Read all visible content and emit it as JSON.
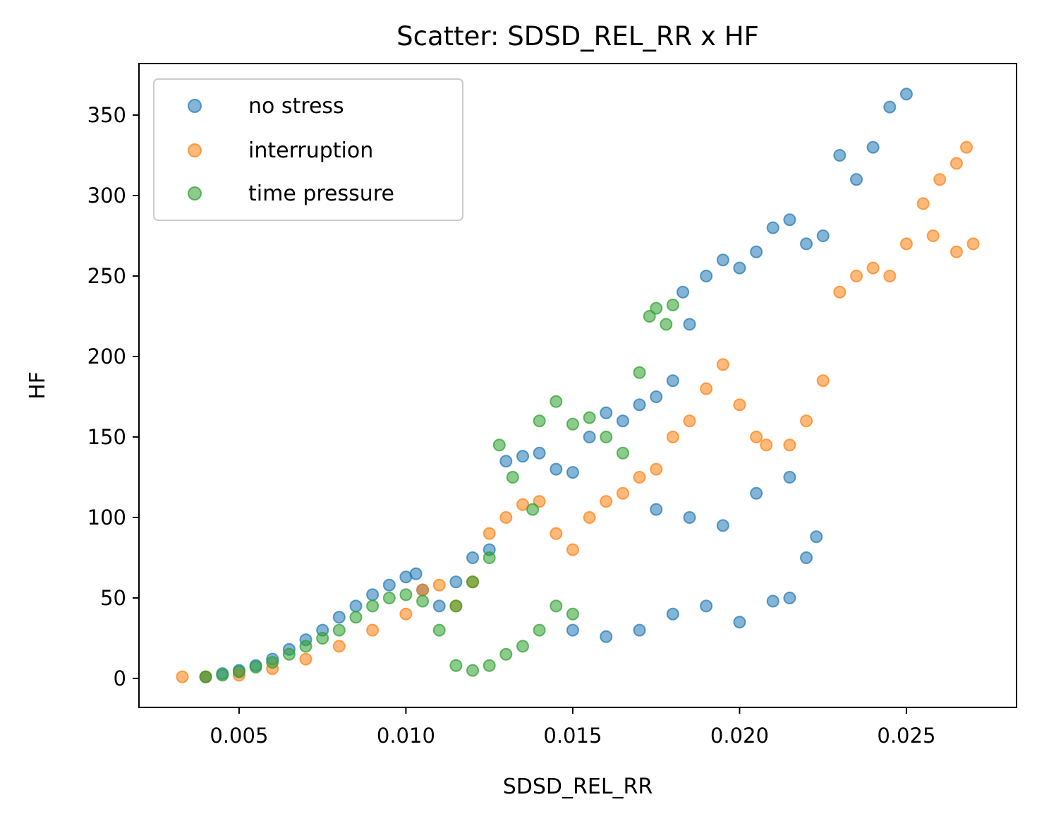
{
  "chart_data": {
    "type": "scatter",
    "title": "Scatter: SDSD_REL_RR x HF",
    "xlabel": "SDSD_REL_RR",
    "ylabel": "HF",
    "xlim": [
      0.002,
      0.0283
    ],
    "ylim": [
      -18,
      382
    ],
    "xticks": [
      {
        "value": 0.005,
        "label": "0.005"
      },
      {
        "value": 0.01,
        "label": "0.010"
      },
      {
        "value": 0.015,
        "label": "0.015"
      },
      {
        "value": 0.02,
        "label": "0.020"
      },
      {
        "value": 0.025,
        "label": "0.025"
      }
    ],
    "yticks": [
      {
        "value": 0,
        "label": "0"
      },
      {
        "value": 50,
        "label": "50"
      },
      {
        "value": 100,
        "label": "100"
      },
      {
        "value": 150,
        "label": "150"
      },
      {
        "value": 200,
        "label": "200"
      },
      {
        "value": 250,
        "label": "250"
      },
      {
        "value": 300,
        "label": "300"
      },
      {
        "value": 350,
        "label": "350"
      }
    ],
    "legend_position": "top-left",
    "series": [
      {
        "name": "no stress",
        "color": "#1f77b4",
        "points": [
          [
            0.004,
            1
          ],
          [
            0.0045,
            3
          ],
          [
            0.005,
            5
          ],
          [
            0.0055,
            8
          ],
          [
            0.006,
            12
          ],
          [
            0.0065,
            18
          ],
          [
            0.007,
            24
          ],
          [
            0.0075,
            30
          ],
          [
            0.008,
            38
          ],
          [
            0.0085,
            45
          ],
          [
            0.009,
            52
          ],
          [
            0.0095,
            58
          ],
          [
            0.01,
            63
          ],
          [
            0.0103,
            65
          ],
          [
            0.0105,
            55
          ],
          [
            0.011,
            45
          ],
          [
            0.0115,
            60
          ],
          [
            0.012,
            75
          ],
          [
            0.0125,
            80
          ],
          [
            0.013,
            135
          ],
          [
            0.0135,
            138
          ],
          [
            0.014,
            140
          ],
          [
            0.0145,
            130
          ],
          [
            0.015,
            128
          ],
          [
            0.0155,
            150
          ],
          [
            0.016,
            165
          ],
          [
            0.0165,
            160
          ],
          [
            0.017,
            170
          ],
          [
            0.0175,
            175
          ],
          [
            0.018,
            185
          ],
          [
            0.0183,
            240
          ],
          [
            0.0185,
            220
          ],
          [
            0.019,
            250
          ],
          [
            0.0195,
            260
          ],
          [
            0.02,
            255
          ],
          [
            0.0205,
            265
          ],
          [
            0.021,
            280
          ],
          [
            0.0215,
            285
          ],
          [
            0.022,
            270
          ],
          [
            0.0225,
            275
          ],
          [
            0.023,
            325
          ],
          [
            0.0235,
            310
          ],
          [
            0.024,
            330
          ],
          [
            0.0245,
            355
          ],
          [
            0.025,
            363
          ],
          [
            0.015,
            30
          ],
          [
            0.016,
            26
          ],
          [
            0.017,
            30
          ],
          [
            0.018,
            40
          ],
          [
            0.019,
            45
          ],
          [
            0.02,
            35
          ],
          [
            0.021,
            48
          ],
          [
            0.0215,
            50
          ],
          [
            0.022,
            75
          ],
          [
            0.0223,
            88
          ],
          [
            0.0175,
            105
          ],
          [
            0.0185,
            100
          ],
          [
            0.0195,
            95
          ],
          [
            0.0205,
            115
          ],
          [
            0.0215,
            125
          ]
        ]
      },
      {
        "name": "interruption",
        "color": "#ff7f0e",
        "points": [
          [
            0.0033,
            1
          ],
          [
            0.004,
            1
          ],
          [
            0.005,
            2
          ],
          [
            0.006,
            6
          ],
          [
            0.007,
            12
          ],
          [
            0.008,
            20
          ],
          [
            0.009,
            30
          ],
          [
            0.01,
            40
          ],
          [
            0.0105,
            55
          ],
          [
            0.011,
            58
          ],
          [
            0.0115,
            45
          ],
          [
            0.012,
            60
          ],
          [
            0.0125,
            90
          ],
          [
            0.013,
            100
          ],
          [
            0.0135,
            108
          ],
          [
            0.014,
            110
          ],
          [
            0.0145,
            90
          ],
          [
            0.015,
            80
          ],
          [
            0.0155,
            100
          ],
          [
            0.016,
            110
          ],
          [
            0.0165,
            115
          ],
          [
            0.017,
            125
          ],
          [
            0.0175,
            130
          ],
          [
            0.018,
            150
          ],
          [
            0.0185,
            160
          ],
          [
            0.019,
            180
          ],
          [
            0.0195,
            195
          ],
          [
            0.02,
            170
          ],
          [
            0.0205,
            150
          ],
          [
            0.0208,
            145
          ],
          [
            0.0215,
            145
          ],
          [
            0.022,
            160
          ],
          [
            0.0225,
            185
          ],
          [
            0.023,
            240
          ],
          [
            0.0235,
            250
          ],
          [
            0.024,
            255
          ],
          [
            0.0245,
            250
          ],
          [
            0.025,
            270
          ],
          [
            0.0255,
            295
          ],
          [
            0.026,
            310
          ],
          [
            0.0265,
            320
          ],
          [
            0.0268,
            330
          ],
          [
            0.027,
            270
          ],
          [
            0.0265,
            265
          ],
          [
            0.0258,
            275
          ]
        ]
      },
      {
        "name": "time pressure",
        "color": "#2ca02c",
        "points": [
          [
            0.004,
            1
          ],
          [
            0.0045,
            2
          ],
          [
            0.005,
            4
          ],
          [
            0.0055,
            7
          ],
          [
            0.006,
            10
          ],
          [
            0.0065,
            15
          ],
          [
            0.007,
            20
          ],
          [
            0.0075,
            25
          ],
          [
            0.008,
            30
          ],
          [
            0.0085,
            38
          ],
          [
            0.009,
            45
          ],
          [
            0.0095,
            50
          ],
          [
            0.01,
            52
          ],
          [
            0.0105,
            48
          ],
          [
            0.011,
            30
          ],
          [
            0.0115,
            45
          ],
          [
            0.012,
            60
          ],
          [
            0.0125,
            75
          ],
          [
            0.0128,
            145
          ],
          [
            0.0132,
            125
          ],
          [
            0.0138,
            105
          ],
          [
            0.014,
            160
          ],
          [
            0.0145,
            172
          ],
          [
            0.015,
            158
          ],
          [
            0.0155,
            162
          ],
          [
            0.016,
            150
          ],
          [
            0.0165,
            140
          ],
          [
            0.017,
            190
          ],
          [
            0.0173,
            225
          ],
          [
            0.0175,
            230
          ],
          [
            0.0178,
            220
          ],
          [
            0.018,
            232
          ],
          [
            0.0145,
            45
          ],
          [
            0.015,
            40
          ],
          [
            0.014,
            30
          ],
          [
            0.0135,
            20
          ],
          [
            0.013,
            15
          ],
          [
            0.0125,
            8
          ],
          [
            0.012,
            5
          ],
          [
            0.0115,
            8
          ]
        ]
      }
    ]
  }
}
